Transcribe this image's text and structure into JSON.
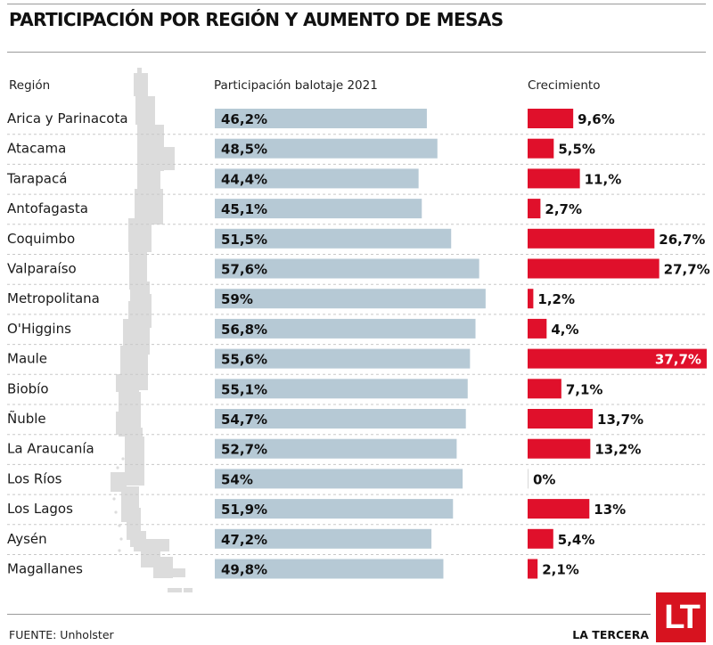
{
  "header": {
    "title": "PARTICIPACIÓN POR REGIÓN Y AUMENTO DE MESAS"
  },
  "columns": {
    "region": "Región",
    "participation": "Participación balotaje 2021",
    "growth": "Crecimiento"
  },
  "footer": {
    "source": "FUENTE: Unholster",
    "brand": "LA TERCERA",
    "logo": "LT"
  },
  "colors": {
    "participation_bar": "#b6c9d5",
    "growth_bar": "#e0102b",
    "map": "#dcdcdc"
  },
  "chart_data": {
    "type": "bar",
    "title": "PARTICIPACIÓN POR REGIÓN Y AUMENTO DE MESAS",
    "categories": [
      "Arica y Parinacota",
      "Atacama",
      "Tarapacá",
      "Antofagasta",
      "Coquimbo",
      "Valparaíso",
      "Metropolitana",
      "O'Higgins",
      "Maule",
      "Biobío",
      "Ñuble",
      "La Araucanía",
      "Los Ríos",
      "Los Lagos",
      "Aysén",
      "Magallanes"
    ],
    "series": [
      {
        "name": "Participación balotaje 2021",
        "values": [
          46.2,
          48.5,
          44.4,
          45.1,
          51.5,
          57.6,
          59,
          56.8,
          55.6,
          55.1,
          54.7,
          52.7,
          54,
          51.9,
          47.2,
          49.8
        ],
        "labels": [
          "46,2%",
          "48,5%",
          "44,4%",
          "45,1%",
          "51,5%",
          "57,6%",
          "59%",
          "56,8%",
          "55,6%",
          "55,1%",
          "54,7%",
          "52,7%",
          "54%",
          "51,9%",
          "47,2%",
          "49,8%"
        ]
      },
      {
        "name": "Crecimiento",
        "values": [
          9.6,
          5.5,
          11,
          2.7,
          26.7,
          27.7,
          1.2,
          4,
          37.7,
          7.1,
          13.7,
          13.2,
          0,
          13,
          5.4,
          2.1
        ],
        "labels": [
          "9,6%",
          "5,5%",
          "11,%",
          "2,7%",
          "26,7%",
          "27,7%",
          "1,2%",
          "4,%",
          "37,7%",
          "7,1%",
          "13,7%",
          "13,2%",
          "0%",
          "13%",
          "5,4%",
          "2,1%"
        ]
      }
    ],
    "xlabel": "",
    "ylabel": "",
    "grid": false,
    "legend": "none"
  }
}
